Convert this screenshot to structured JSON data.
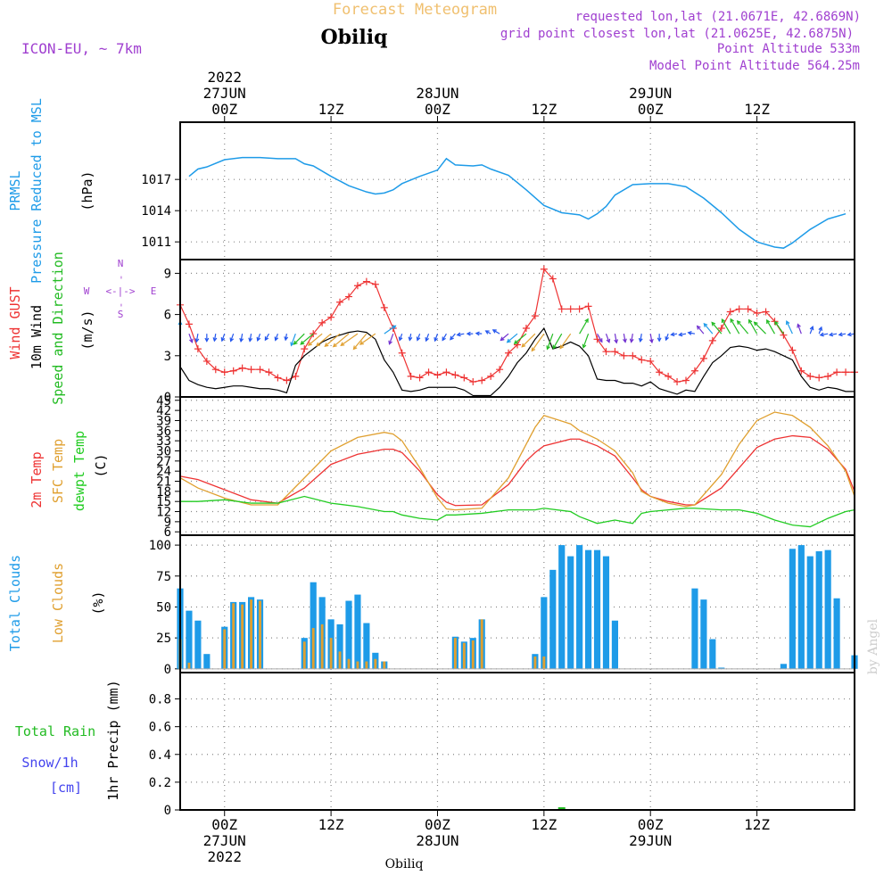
{
  "header": {
    "product": "Forecast Meteogram",
    "location": "Obiliq",
    "model": "ICON-EU, ~ 7km",
    "requested": "requested lon,lat (21.0671E, 42.6869N)",
    "gridpoint": "grid point closest lon,lat (21.0625E, 42.6875N)",
    "point_alt": "Point Altitude 533m",
    "model_alt": "Model Point Altitude 564.25m",
    "footer_location": "Obiliq",
    "credit": "by Angel"
  },
  "time_axis": {
    "top_labels": [
      {
        "lines": [
          "2022",
          "27JUN",
          "00Z"
        ],
        "hour": 0
      },
      {
        "lines": [
          "12Z"
        ],
        "hour": 12
      },
      {
        "lines": [
          "28JUN",
          "00Z"
        ],
        "hour": 24
      },
      {
        "lines": [
          "12Z"
        ],
        "hour": 36
      },
      {
        "lines": [
          "29JUN",
          "00Z"
        ],
        "hour": 48
      },
      {
        "lines": [
          "12Z"
        ],
        "hour": 60
      }
    ],
    "bottom_labels": [
      {
        "lines": [
          "00Z",
          "27JUN",
          "2022"
        ],
        "hour": 0
      },
      {
        "lines": [
          "12Z"
        ],
        "hour": 12
      },
      {
        "lines": [
          "00Z",
          "28JUN"
        ],
        "hour": 24
      },
      {
        "lines": [
          "12Z"
        ],
        "hour": 36
      },
      {
        "lines": [
          "00Z",
          "29JUN"
        ],
        "hour": 48
      },
      {
        "lines": [
          "12Z"
        ],
        "hour": 60
      }
    ],
    "range_hours": [
      -5,
      71
    ]
  },
  "colors": {
    "pressure": "#1e9be8",
    "gust": "#ee3333",
    "wind": "#000000",
    "direction": "#22bb22",
    "compass": "#a040d0",
    "temp2m": "#ee3333",
    "sfctemp": "#e0a030",
    "dewpt": "#22cc22",
    "total_clouds": "#1e9be8",
    "low_clouds": "#e0a030",
    "rain": "#22bb22",
    "snow": "#4444ee",
    "header_orange": "#f0c070",
    "header_purple": "#a040d0",
    "grid": "#888888"
  },
  "panels": {
    "pressure": {
      "labels": [
        "PRMSL",
        "Pressure Reduced to MSL",
        "(hPa)"
      ],
      "ticks": [
        "1011",
        "1014",
        "1017"
      ]
    },
    "wind": {
      "labels": [
        "Wind GUST",
        "10m Wind",
        "Speed and Direction",
        "(m/s)"
      ],
      "ticks": [
        "0",
        "3",
        "6",
        "9"
      ],
      "compass": {
        "n": "N",
        "s": "S",
        "w": "W",
        "e": "E",
        "ns_arrow": "-",
        "we_arrow": "<-|->"
      }
    },
    "temp": {
      "labels": [
        "2m Temp",
        "SFC Temp",
        "dewpt Temp",
        "(C)"
      ],
      "ticks": [
        "6",
        "9",
        "12",
        "15",
        "18",
        "21",
        "24",
        "27",
        "30",
        "33",
        "36",
        "39",
        "42",
        "45"
      ]
    },
    "clouds": {
      "labels": [
        "Total Clouds",
        "Low Clouds",
        "(%)"
      ],
      "ticks": [
        "0",
        "25",
        "50",
        "75",
        "100"
      ]
    },
    "precip": {
      "labels": [
        "Total  Rain",
        "Snow/1h",
        "[cm]",
        "1hr Precip (mm)"
      ],
      "ticks": [
        "0",
        "0.2",
        "0.4",
        "0.6",
        "0.8"
      ]
    }
  },
  "chart_data": [
    {
      "type": "line",
      "name": "pressure",
      "ylabel": "Pressure Reduced to MSL (hPa)",
      "ylim": [
        1009.3,
        1022.5
      ],
      "x_hours": [
        -4,
        -3,
        -2,
        0,
        2,
        4,
        6,
        8,
        9,
        10,
        12,
        14,
        16,
        17,
        18,
        19,
        20,
        22,
        24,
        25,
        26,
        28,
        29,
        30,
        32,
        34,
        36,
        38,
        40,
        41,
        42,
        43,
        44,
        46,
        48,
        50,
        52,
        54,
        56,
        58,
        60,
        62,
        63,
        64,
        66,
        68,
        70
      ],
      "series": [
        {
          "name": "PRMSL",
          "values": [
            1017.3,
            1018,
            1018.2,
            1018.9,
            1019.1,
            1019.1,
            1019.0,
            1019.0,
            1018.5,
            1018.3,
            1017.3,
            1016.4,
            1015.8,
            1015.6,
            1015.7,
            1016.0,
            1016.6,
            1017.3,
            1017.9,
            1019.0,
            1018.4,
            1018.3,
            1018.4,
            1018.0,
            1017.4,
            1016.0,
            1014.5,
            1013.8,
            1013.6,
            1013.2,
            1013.7,
            1014.4,
            1015.5,
            1016.5,
            1016.6,
            1016.6,
            1016.3,
            1015.2,
            1013.8,
            1012.2,
            1011.0,
            1010.5,
            1010.4,
            1010.9,
            1012.2,
            1013.2,
            1013.7
          ]
        }
      ]
    },
    {
      "type": "line",
      "name": "wind",
      "ylabel": "(m/s)",
      "ylim": [
        0,
        10
      ],
      "x_hours": [
        -5,
        -4,
        -3,
        -2,
        -1,
        0,
        1,
        2,
        3,
        4,
        5,
        6,
        7,
        8,
        9,
        10,
        11,
        12,
        13,
        14,
        15,
        16,
        17,
        18,
        19,
        20,
        21,
        22,
        23,
        24,
        25,
        26,
        27,
        28,
        29,
        30,
        31,
        32,
        33,
        34,
        35,
        36,
        37,
        38,
        39,
        40,
        41,
        42,
        43,
        44,
        45,
        46,
        47,
        48,
        49,
        50,
        51,
        52,
        53,
        54,
        55,
        56,
        57,
        58,
        59,
        60,
        61,
        62,
        63,
        64,
        65,
        66,
        67,
        68,
        69,
        70,
        71
      ],
      "series": [
        {
          "name": "Wind GUST",
          "values": [
            6.7,
            5.3,
            3.5,
            2.6,
            2.0,
            1.8,
            1.9,
            2.1,
            2.0,
            2.0,
            1.8,
            1.4,
            1.2,
            1.5,
            3.5,
            4.6,
            5.4,
            5.8,
            6.9,
            7.3,
            8.1,
            8.4,
            8.2,
            6.5,
            5.0,
            3.2,
            1.5,
            1.4,
            1.8,
            1.6,
            1.8,
            1.6,
            1.4,
            1.1,
            1.2,
            1.5,
            2.0,
            3.2,
            3.8,
            5.0,
            5.9,
            9.3,
            8.6,
            6.4,
            6.4,
            6.4,
            6.6,
            4.2,
            3.3,
            3.3,
            3.0,
            3.0,
            2.7,
            2.6,
            1.8,
            1.5,
            1.1,
            1.2,
            1.9,
            2.8,
            4.1,
            5.0,
            6.2,
            6.4,
            6.4,
            6.1,
            6.2,
            5.5,
            4.5,
            3.4,
            1.9,
            1.5,
            1.4,
            1.5,
            1.8,
            1.8,
            1.8
          ]
        },
        {
          "name": "10m Wind",
          "values": [
            2.2,
            1.2,
            0.9,
            0.7,
            0.6,
            0.7,
            0.8,
            0.8,
            0.7,
            0.6,
            0.6,
            0.5,
            0.3,
            2.3,
            3.0,
            3.5,
            4.0,
            4.3,
            4.5,
            4.7,
            4.8,
            4.7,
            4.2,
            2.7,
            1.8,
            0.5,
            0.4,
            0.5,
            0.7,
            0.7,
            0.7,
            0.7,
            0.5,
            0.1,
            0.1,
            0.1,
            0.7,
            1.5,
            2.5,
            3.2,
            4.2,
            5.0,
            3.5,
            3.7,
            4.0,
            3.7,
            3.0,
            1.3,
            1.2,
            1.2,
            1.0,
            1.0,
            0.8,
            1.1,
            0.6,
            0.4,
            0.2,
            0.5,
            0.4,
            1.5,
            2.5,
            3.0,
            3.6,
            3.7,
            3.6,
            3.4,
            3.5,
            3.3,
            3.0,
            2.7,
            1.5,
            0.7,
            0.5,
            0.7,
            0.6,
            0.4,
            0.4
          ]
        }
      ]
    },
    {
      "type": "line",
      "name": "temperature",
      "ylabel": "(C)",
      "ylim": [
        5,
        46
      ],
      "x_hours": [
        -5,
        -3,
        0,
        3,
        6,
        9,
        12,
        15,
        18,
        19,
        20,
        22,
        24,
        25,
        26,
        29,
        32,
        34,
        35,
        36,
        39,
        40,
        42,
        44,
        46,
        47,
        48,
        50,
        52,
        53,
        56,
        58,
        60,
        62,
        64,
        66,
        68,
        70,
        71
      ],
      "series": [
        {
          "name": "2m Temp",
          "values": [
            22.5,
            21.5,
            18.5,
            15.5,
            14.5,
            19.0,
            26.0,
            29.0,
            30.5,
            30.5,
            29.5,
            24.0,
            17.0,
            14.8,
            13.8,
            14.0,
            20.0,
            27.0,
            29.5,
            31.5,
            33.5,
            33.5,
            31.5,
            28.5,
            22.0,
            18.5,
            16.5,
            15.0,
            14.0,
            14.0,
            19.0,
            25.0,
            31.0,
            33.5,
            34.5,
            34.0,
            30.5,
            24.5,
            18.0
          ]
        },
        {
          "name": "SFC Temp",
          "values": [
            22.0,
            19.0,
            16.0,
            14.0,
            14.0,
            22.0,
            30.0,
            34.0,
            35.5,
            35.0,
            33.0,
            25.0,
            16.0,
            12.8,
            12.5,
            13.0,
            22.0,
            32.0,
            37.0,
            40.5,
            38.0,
            36.0,
            33.5,
            30.0,
            23.5,
            18.0,
            16.5,
            14.5,
            13.5,
            14.0,
            23.0,
            32.0,
            39.0,
            41.5,
            40.5,
            37.0,
            31.5,
            24.0,
            16.5
          ]
        },
        {
          "name": "dewpt Temp",
          "values": [
            15.0,
            15.0,
            15.5,
            14.5,
            14.5,
            16.5,
            14.5,
            13.5,
            12.0,
            12.0,
            11.0,
            10.0,
            9.5,
            11.0,
            11.0,
            11.5,
            12.5,
            12.5,
            12.5,
            13.0,
            12.0,
            10.5,
            8.5,
            9.5,
            8.5,
            11.5,
            12.0,
            12.5,
            13.0,
            13.0,
            12.5,
            12.5,
            11.5,
            9.5,
            8.0,
            7.5,
            10.0,
            12.0,
            12.5
          ]
        }
      ]
    },
    {
      "type": "bar",
      "name": "clouds",
      "ylabel": "(%)",
      "ylim": [
        -3,
        108
      ],
      "x_hours": [
        -5,
        -4,
        -3,
        -2,
        -1,
        0,
        1,
        2,
        3,
        4,
        5,
        6,
        7,
        8,
        9,
        10,
        11,
        12,
        13,
        14,
        15,
        16,
        17,
        18,
        19,
        20,
        21,
        22,
        23,
        24,
        25,
        26,
        27,
        28,
        29,
        30,
        31,
        32,
        33,
        34,
        35,
        36,
        37,
        38,
        39,
        40,
        41,
        42,
        43,
        44,
        45,
        46,
        47,
        48,
        49,
        50,
        51,
        52,
        53,
        54,
        55,
        56,
        57,
        58,
        59,
        60,
        61,
        62,
        63,
        64,
        65,
        66,
        67,
        68,
        69,
        70,
        71
      ],
      "series": [
        {
          "name": "Total Clouds",
          "values": [
            65,
            47,
            39,
            12,
            0,
            34,
            54,
            54,
            58,
            56,
            0,
            0,
            0,
            0,
            25,
            70,
            58,
            40,
            36,
            55,
            60,
            37,
            13,
            6,
            0,
            0,
            0,
            0,
            0,
            0,
            0,
            26,
            22,
            25,
            40,
            0,
            0,
            0,
            0,
            0,
            12,
            58,
            80,
            100,
            91,
            100,
            96,
            96,
            91,
            39,
            0,
            0,
            0,
            0,
            0,
            0,
            0,
            0,
            65,
            56,
            24,
            1,
            0,
            0,
            0,
            0,
            0,
            0,
            4,
            97,
            100,
            91,
            95,
            96,
            57,
            0,
            11
          ]
        },
        {
          "name": "Low Clouds",
          "values": [
            24,
            5,
            0,
            0,
            0,
            32,
            53,
            52,
            56,
            55,
            0,
            0,
            0,
            0,
            22,
            33,
            36,
            25,
            14,
            8,
            6,
            6,
            8,
            6,
            0,
            0,
            0,
            0,
            0,
            0,
            0,
            25,
            21,
            23,
            40,
            0,
            0,
            0,
            0,
            0,
            10,
            10,
            0,
            0,
            0,
            0,
            0,
            0,
            0,
            0,
            0,
            0,
            0,
            0,
            0,
            0,
            0,
            0,
            0,
            0,
            0,
            0,
            0,
            0,
            0,
            0,
            0,
            0,
            0,
            0,
            0,
            0,
            0,
            0,
            0,
            0,
            0
          ]
        }
      ]
    },
    {
      "type": "bar",
      "name": "precipitation",
      "ylabel": "1hr Precip (mm)",
      "ylim": [
        0,
        0.99
      ],
      "x_hours": [
        38
      ],
      "series": [
        {
          "name": "Total Rain",
          "values": [
            0.01
          ]
        }
      ]
    }
  ],
  "wind_directions": {
    "note": "direction (deg, toward) of barb arrows at hourly steps",
    "x_hours": [
      -5,
      -4,
      -3,
      -2,
      -1,
      0,
      1,
      2,
      3,
      4,
      5,
      6,
      7,
      8,
      9,
      10,
      11,
      12,
      13,
      14,
      15,
      16,
      17,
      18,
      19,
      20,
      21,
      22,
      23,
      24,
      25,
      26,
      27,
      28,
      29,
      30,
      31,
      32,
      33,
      34,
      35,
      36,
      37,
      38,
      39,
      40,
      41,
      42,
      43,
      44,
      45,
      46,
      47,
      48,
      49,
      50,
      51,
      52,
      53,
      54,
      55,
      56,
      57,
      58,
      59,
      60,
      61,
      62,
      63,
      64,
      65,
      66,
      67,
      68,
      69,
      70,
      71
    ],
    "deg": [
      0,
      160,
      190,
      180,
      190,
      200,
      200,
      190,
      190,
      200,
      210,
      200,
      190,
      200,
      225,
      230,
      230,
      230,
      230,
      230,
      235,
      220,
      235,
      55,
      200,
      200,
      190,
      200,
      200,
      200,
      210,
      220,
      260,
      270,
      275,
      300,
      300,
      230,
      230,
      230,
      225,
      215,
      200,
      210,
      215,
      30,
      200,
      150,
      160,
      170,
      170,
      190,
      190,
      170,
      180,
      200,
      260,
      260,
      280,
      320,
      320,
      320,
      330,
      330,
      320,
      330,
      315,
      330,
      325,
      335,
      340,
      20,
      20,
      260,
      260,
      260,
      260
    ]
  }
}
